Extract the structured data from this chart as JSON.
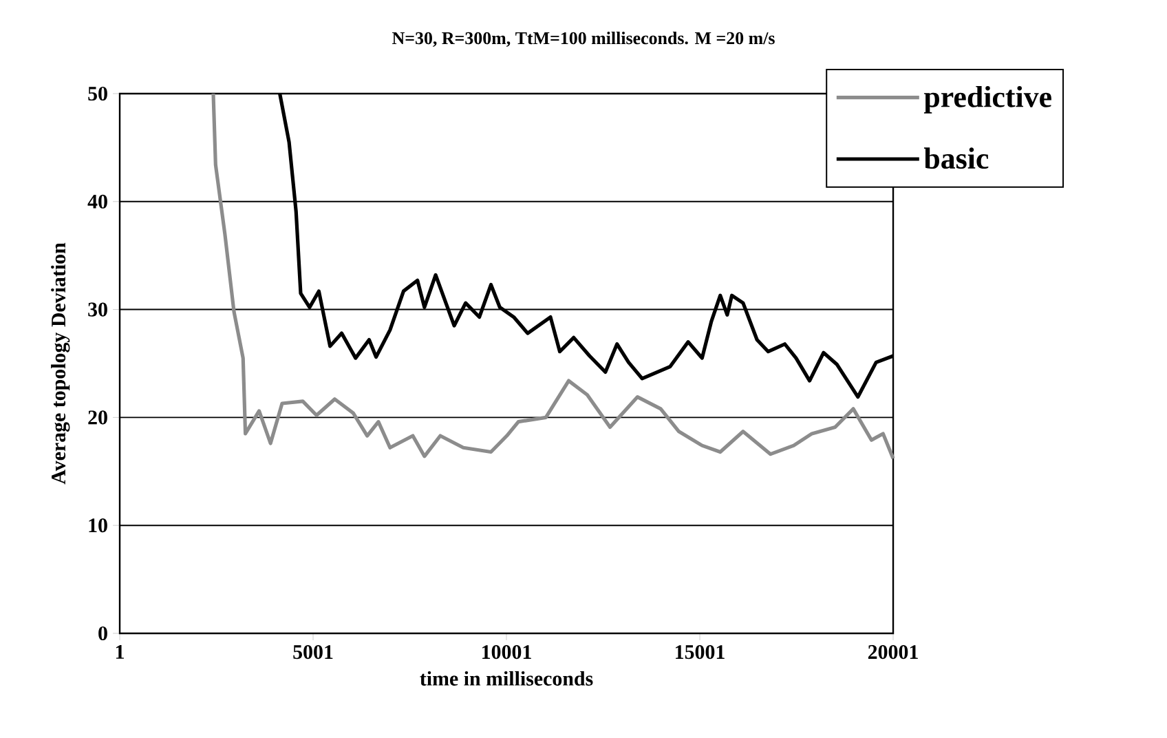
{
  "chart_data": {
    "type": "line",
    "title": "N=30, R=300m, TtM=100 milliseconds. M =20 m/s",
    "xlabel": "time in milliseconds",
    "ylabel": "Average topology Deviation",
    "xlim": [
      1,
      20001
    ],
    "xticks": [
      1,
      5001,
      10001,
      15001,
      20001
    ],
    "ylim": [
      0,
      50
    ],
    "yticks": [
      0,
      10,
      20,
      30,
      40,
      50
    ],
    "grid": "y",
    "legend": "top right",
    "marker": "none",
    "line_style": "solid",
    "series": [
      {
        "name": "predictive",
        "color": "#8c8c8c",
        "x": [
          2420,
          2480,
          2720,
          2955,
          3190,
          3250,
          3605,
          3900,
          4200,
          4735,
          5090,
          5560,
          6040,
          6400,
          6690,
          6990,
          7580,
          7880,
          8290,
          8885,
          9600,
          10010,
          10310,
          11020,
          11610,
          12090,
          12680,
          13390,
          13990,
          14460,
          15060,
          15530,
          16120,
          16830,
          17430,
          17900,
          18500,
          18970,
          19440,
          19740,
          20001
        ],
        "values": [
          50,
          43.4,
          37,
          29.8,
          25.5,
          18.5,
          20.6,
          17.6,
          21.3,
          21.5,
          20.2,
          21.7,
          20.4,
          18.3,
          19.6,
          17.2,
          18.3,
          16.4,
          18.3,
          17.2,
          16.8,
          18.3,
          19.6,
          20,
          23.4,
          22.1,
          19.1,
          21.9,
          20.8,
          18.7,
          17.4,
          16.8,
          18.7,
          16.6,
          17.4,
          18.5,
          19.1,
          20.8,
          17.9,
          18.5,
          16.2
        ]
      },
      {
        "name": "basic",
        "color": "#000000",
        "x": [
          4140,
          4380,
          4560,
          4680,
          4910,
          5150,
          5440,
          5740,
          6100,
          6450,
          6630,
          6990,
          7340,
          7700,
          7880,
          8170,
          8650,
          8945,
          9300,
          9600,
          9830,
          10190,
          10550,
          11140,
          11380,
          11740,
          12150,
          12560,
          12860,
          13160,
          13510,
          14230,
          14700,
          15060,
          15300,
          15530,
          15710,
          15830,
          16120,
          16480,
          16770,
          17200,
          17490,
          17840,
          18200,
          18550,
          19090,
          19560,
          20001
        ],
        "values": [
          50,
          45.5,
          39.1,
          31.5,
          30.2,
          31.7,
          26.6,
          27.8,
          25.5,
          27.2,
          25.6,
          28.1,
          31.7,
          32.7,
          30.2,
          33.2,
          28.5,
          30.6,
          29.3,
          32.3,
          30.2,
          29.3,
          27.8,
          29.3,
          26.1,
          27.4,
          25.7,
          24.2,
          26.8,
          25.1,
          23.6,
          24.7,
          27,
          25.5,
          28.9,
          31.3,
          29.5,
          31.3,
          30.6,
          27.2,
          26.1,
          26.8,
          25.5,
          23.4,
          26,
          24.9,
          21.9,
          25.1,
          25.7
        ]
      }
    ]
  }
}
